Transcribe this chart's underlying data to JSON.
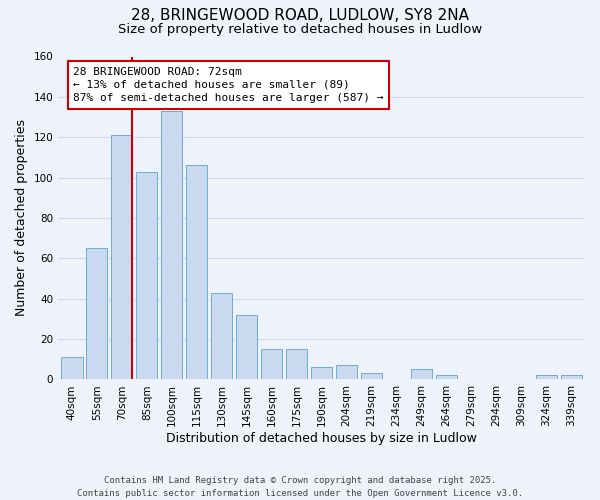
{
  "title": "28, BRINGEWOOD ROAD, LUDLOW, SY8 2NA",
  "subtitle": "Size of property relative to detached houses in Ludlow",
  "xlabel": "Distribution of detached houses by size in Ludlow",
  "ylabel": "Number of detached properties",
  "bar_color": "#c8d9f0",
  "bar_edge_color": "#6baed6",
  "background_color": "#eef2fb",
  "grid_color": "#d0d8ee",
  "categories": [
    "40sqm",
    "55sqm",
    "70sqm",
    "85sqm",
    "100sqm",
    "115sqm",
    "130sqm",
    "145sqm",
    "160sqm",
    "175sqm",
    "190sqm",
    "204sqm",
    "219sqm",
    "234sqm",
    "249sqm",
    "264sqm",
    "279sqm",
    "294sqm",
    "309sqm",
    "324sqm",
    "339sqm"
  ],
  "values": [
    11,
    65,
    121,
    103,
    133,
    106,
    43,
    32,
    15,
    15,
    6,
    7,
    3,
    0,
    5,
    2,
    0,
    0,
    0,
    2,
    2
  ],
  "ylim": [
    0,
    160
  ],
  "yticks": [
    0,
    20,
    40,
    60,
    80,
    100,
    120,
    140,
    160
  ],
  "property_line_bar_index": 2,
  "property_label": "28 BRINGEWOOD ROAD: 72sqm",
  "annotation_line1": "← 13% of detached houses are smaller (89)",
  "annotation_line2": "87% of semi-detached houses are larger (587) →",
  "footer_line1": "Contains HM Land Registry data © Crown copyright and database right 2025.",
  "footer_line2": "Contains public sector information licensed under the Open Government Licence v3.0.",
  "annotation_box_facecolor": "#ffffff",
  "annotation_box_edgecolor": "#cc0000",
  "property_line_color": "#cc0000",
  "title_fontsize": 11,
  "subtitle_fontsize": 9.5,
  "axis_label_fontsize": 9,
  "tick_fontsize": 7.5,
  "annotation_fontsize": 8,
  "footer_fontsize": 6.5
}
